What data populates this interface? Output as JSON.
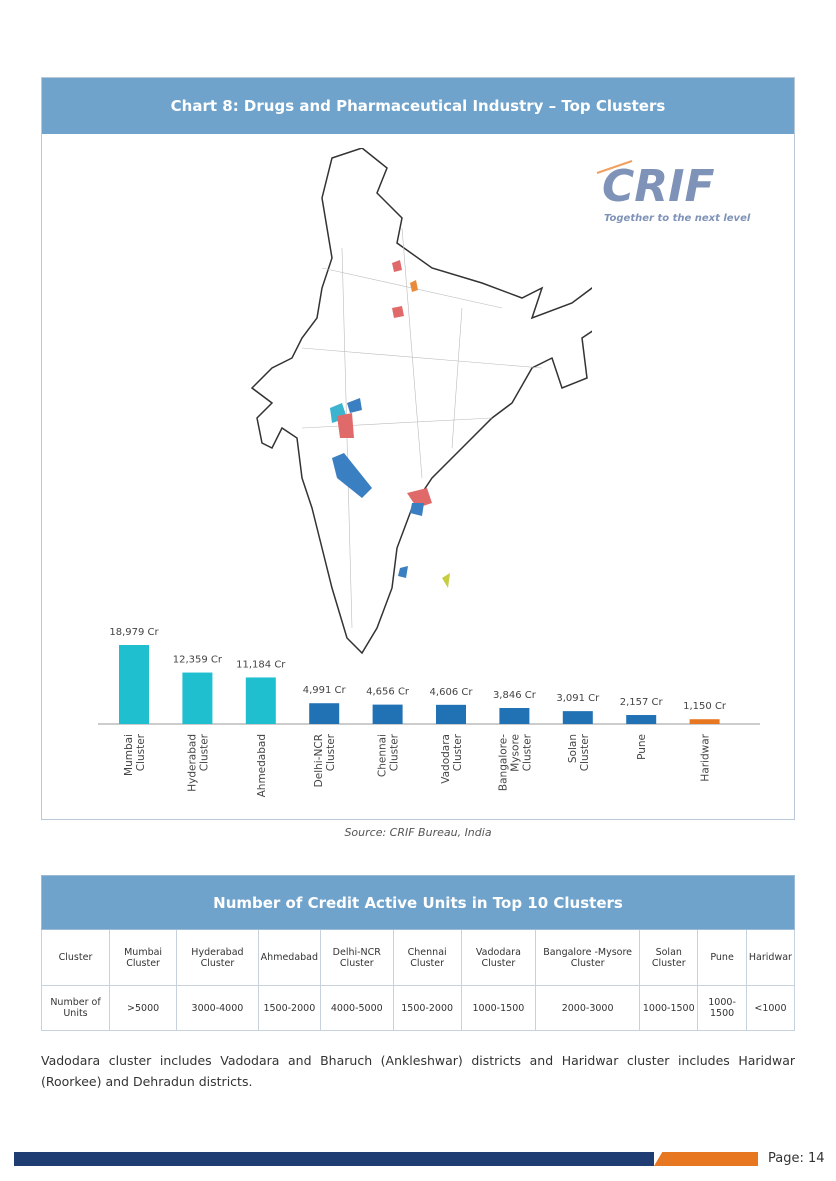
{
  "chart_title": "Chart 8: Drugs and Pharmaceutical Industry – Top Clusters",
  "logo": {
    "name": "CRIF",
    "tagline": "Together to the next level"
  },
  "source": "Source: CRIF Bureau, India",
  "chart_data": {
    "type": "bar",
    "categories": [
      "Mumbai Cluster",
      "Hyderabad Cluster",
      "Ahmedabad",
      "Delhi-NCR Cluster",
      "Chennai Cluster",
      "Vadodara Cluster",
      "Bangalore-Mysore Cluster",
      "Solan Cluster",
      "Pune",
      "Haridwar"
    ],
    "values": [
      18979,
      12359,
      11184,
      4991,
      4656,
      4606,
      3846,
      3091,
      2157,
      1150
    ],
    "data_labels": [
      "18,979 Cr",
      "12,359 Cr",
      "11,184 Cr",
      "4,991 Cr",
      "4,656 Cr",
      "4,606 Cr",
      "3,846 Cr",
      "3,091 Cr",
      "2,157 Cr",
      "1,150 Cr"
    ],
    "colors": [
      "#1fbfd0",
      "#1fbfd0",
      "#1fbfd0",
      "#2171b5",
      "#2171b5",
      "#2171b5",
      "#2171b5",
      "#2171b5",
      "#2171b5",
      "#e87722"
    ],
    "grid": false
  },
  "table": {
    "title": "Number of Credit Active Units in Top 10 Clusters",
    "header": [
      "Cluster",
      "Mumbai Cluster",
      "Hyderabad Cluster",
      "Ahmedabad",
      "Delhi-NCR Cluster",
      "Chennai Cluster",
      "Vadodara Cluster",
      "Bangalore -Mysore Cluster",
      "Solan Cluster",
      "Pune",
      "Haridwar"
    ],
    "row": [
      "Number of Units",
      ">5000",
      "3000-4000",
      "1500-2000",
      "4000-5000",
      "1500-2000",
      "1000-1500",
      "2000-3000",
      "1000-1500",
      "1000-1500",
      "<1000"
    ]
  },
  "note": "Vadodara cluster includes Vadodara and Bharuch (Ankleshwar) districts and Haridwar cluster includes Haridwar (Roorkee) and Dehradun districts.",
  "footer": {
    "page": "Page: 14"
  }
}
